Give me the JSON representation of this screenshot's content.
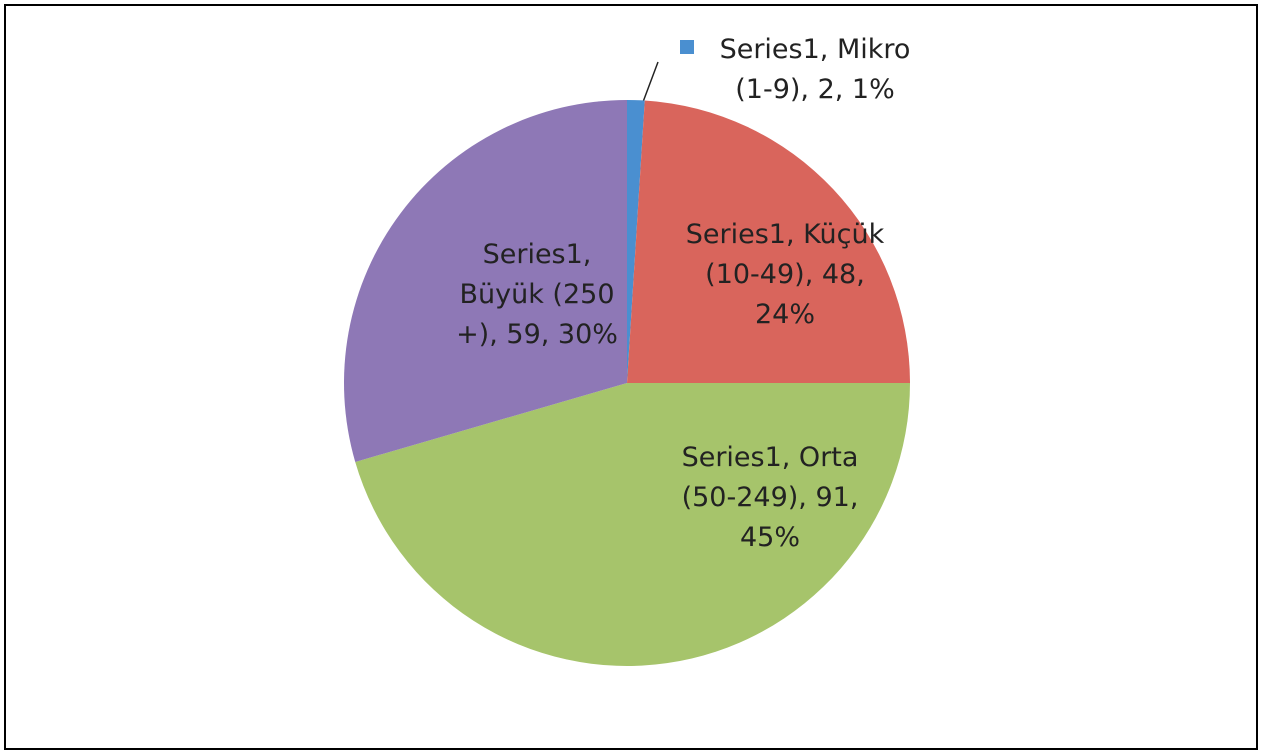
{
  "chart_data": {
    "type": "pie",
    "categories": [
      "Mikro (1-9)",
      "Küçük (10-49)",
      "Orta (50-249)",
      "Büyük (250 +)"
    ],
    "series": [
      {
        "name": "Series1",
        "colors": [
          "#4a8fd0",
          "#d9655c",
          "#a6c46b",
          "#8e78b6"
        ],
        "values": [
          2,
          48,
          91,
          59
        ],
        "value_labels": [
          "Series1, Mikro (1-9), 2, 1%",
          "Series1, Küçük (10-49), 48, 24%",
          "Series1, Orta (50-249), 91, 45%",
          "Series1, Büyük (250 +), 59, 30%"
        ]
      }
    ]
  }
}
